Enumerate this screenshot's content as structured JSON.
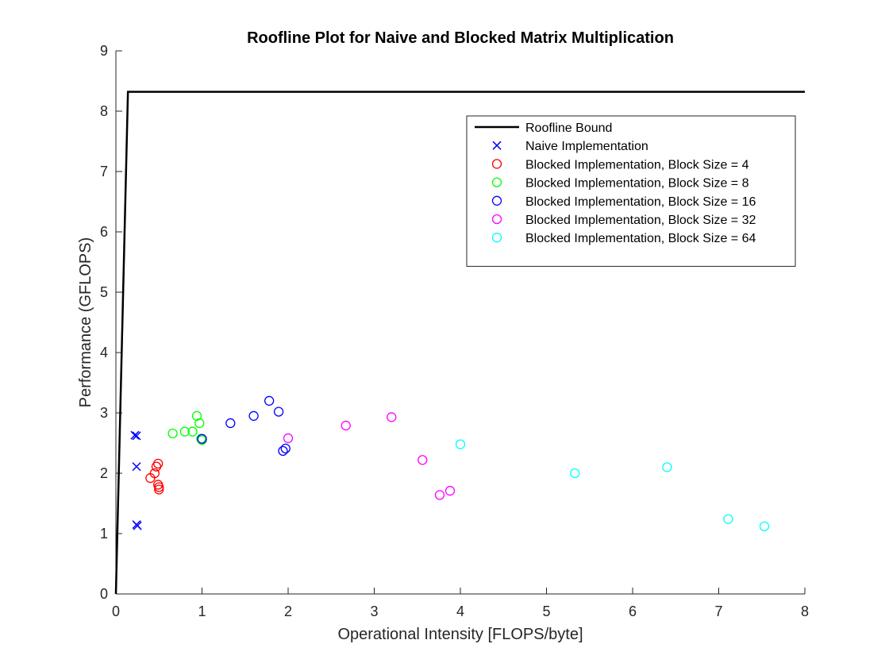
{
  "chart_data": {
    "type": "scatter",
    "title": "Roofline Plot for Naive and Blocked Matrix Multiplication",
    "xlabel": "Operational Intensity [FLOPS/byte]",
    "ylabel": "Performance (GFLOPS)",
    "xlim": [
      0,
      8
    ],
    "ylim": [
      0,
      9
    ],
    "xticks": [
      0,
      1,
      2,
      3,
      4,
      5,
      6,
      7,
      8
    ],
    "yticks": [
      0,
      1,
      2,
      3,
      4,
      5,
      6,
      7,
      8,
      9
    ],
    "grid": false,
    "legend_position": "top-right",
    "roofline": {
      "name": "Roofline Bound",
      "color": "#000000",
      "x": [
        0,
        0.14,
        8
      ],
      "y": [
        0,
        8.32,
        8.32
      ]
    },
    "series": [
      {
        "name": "Naive Implementation",
        "marker": "x",
        "color": "#0000ff",
        "x": [
          0.22,
          0.24,
          0.24,
          0.24,
          0.25
        ],
        "y": [
          2.63,
          2.62,
          2.11,
          1.15,
          1.13
        ]
      },
      {
        "name": "Blocked Implementation, Block Size = 4",
        "marker": "circle",
        "color": "#ff0000",
        "x": [
          0.4,
          0.45,
          0.47,
          0.49,
          0.49,
          0.5,
          0.5
        ],
        "y": [
          1.92,
          2.0,
          2.11,
          2.16,
          1.81,
          1.77,
          1.73
        ]
      },
      {
        "name": "Blocked Implementation, Block Size = 8",
        "marker": "circle",
        "color": "#00ff00",
        "x": [
          0.66,
          0.8,
          0.89,
          0.94,
          0.97,
          0.99,
          1.0
        ],
        "y": [
          2.66,
          2.69,
          2.69,
          2.95,
          2.83,
          2.57,
          2.55
        ]
      },
      {
        "name": "Blocked Implementation, Block Size = 16",
        "marker": "circle",
        "color": "#0000ff",
        "x": [
          1.0,
          1.33,
          1.6,
          1.78,
          1.89,
          1.94,
          1.97
        ],
        "y": [
          2.57,
          2.83,
          2.95,
          3.2,
          3.02,
          2.37,
          2.41
        ]
      },
      {
        "name": "Blocked Implementation, Block Size = 32",
        "marker": "circle",
        "color": "#ff00ff",
        "x": [
          2.0,
          2.67,
          3.2,
          3.56,
          3.76,
          3.88
        ],
        "y": [
          2.58,
          2.79,
          2.93,
          2.22,
          1.64,
          1.71
        ]
      },
      {
        "name": "Blocked Implementation, Block Size = 64",
        "marker": "circle",
        "color": "#00ffff",
        "x": [
          4.0,
          5.33,
          6.4,
          7.11,
          7.53
        ],
        "y": [
          2.48,
          2.0,
          2.1,
          1.24,
          1.12
        ]
      }
    ]
  }
}
